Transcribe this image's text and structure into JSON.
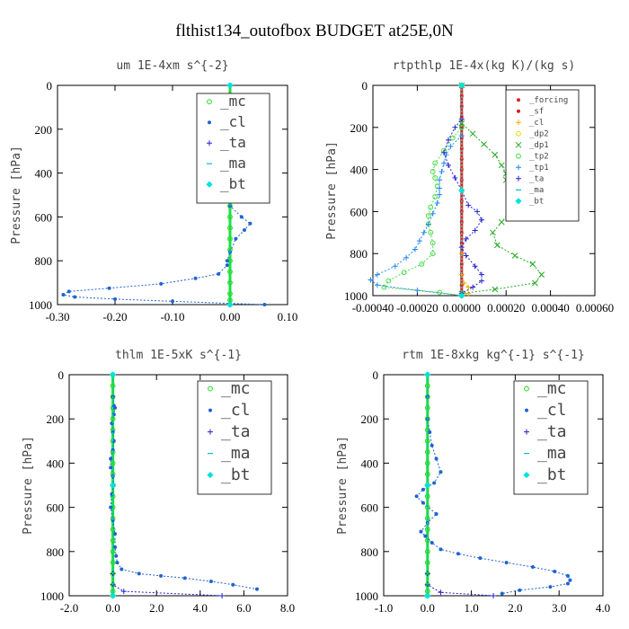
{
  "title": "flthist134_outofbox  BUDGET at25E,0N",
  "chart_data": [
    {
      "type": "line",
      "title": "um  1E-4xm s^{-2}",
      "ylabel": "Pressure [hPa]",
      "xlim": [
        -0.3,
        0.1
      ],
      "ylim": [
        1000,
        0
      ],
      "xticks": [
        "-0.30",
        "-0.20",
        "-0.10",
        "0.00",
        "0.10"
      ],
      "yticks": [
        "0",
        "200",
        "400",
        "600",
        "800",
        "1000"
      ],
      "legend_position": "upper-right",
      "series": [
        {
          "name": "_mc",
          "color": "#22dd22",
          "marker": "o",
          "x": [
            0.0,
            0.0,
            0.0,
            0.0,
            0.0,
            0.0,
            0.0,
            0.0,
            0.0,
            0.0,
            0.0,
            0.0,
            0.0,
            0.0,
            0.0,
            0.0,
            0.0,
            0.0,
            0.0,
            0.0,
            0.0,
            0.0
          ],
          "y": [
            0,
            50,
            100,
            150,
            200,
            250,
            300,
            350,
            400,
            450,
            500,
            550,
            600,
            650,
            700,
            750,
            800,
            850,
            900,
            950,
            980,
            1000
          ]
        },
        {
          "name": "_cl",
          "color": "#1e64d2",
          "marker": "*",
          "x": [
            0.0,
            0.0,
            0.01,
            0.04,
            0.045,
            0.03,
            0.02,
            0.0,
            -0.02,
            -0.04,
            -0.045,
            -0.03,
            -0.01,
            0.0,
            0.0,
            0.005,
            0.01,
            0.0,
            0.0,
            0.02,
            0.035,
            0.025,
            0.01,
            0.0,
            -0.005,
            -0.005,
            -0.02,
            -0.06,
            -0.12,
            -0.21,
            -0.28,
            -0.29,
            -0.27,
            -0.2,
            -0.1,
            0.06
          ],
          "y": [
            0,
            60,
            100,
            135,
            150,
            175,
            200,
            210,
            215,
            220,
            240,
            265,
            280,
            300,
            350,
            400,
            450,
            500,
            550,
            600,
            630,
            660,
            700,
            760,
            800,
            820,
            860,
            880,
            905,
            925,
            940,
            955,
            965,
            975,
            985,
            1000
          ]
        },
        {
          "name": "_ta",
          "color": "#2222cc",
          "marker": "+",
          "x": [
            0.0,
            0.0,
            0.0
          ],
          "y": [
            0,
            500,
            1000
          ]
        },
        {
          "name": "_ma",
          "color": "#00bcd4",
          "marker": "-",
          "x": [
            0.0,
            0.0,
            0.0
          ],
          "y": [
            0,
            500,
            1000
          ]
        },
        {
          "name": "_bt",
          "color": "#00e0e0",
          "marker": "d",
          "x": [
            0.0,
            0.0,
            0.0
          ],
          "y": [
            0,
            500,
            1000
          ]
        }
      ]
    },
    {
      "type": "line",
      "title": "rtpthlp  1E-4x(kg K)/(kg s)",
      "ylabel": "Pressure [hPa]",
      "xlim": [
        -0.0004,
        0.0006
      ],
      "ylim": [
        1000,
        0
      ],
      "xticks": [
        "-0.00040",
        "-0.00020",
        "0.00000",
        "0.00020",
        "0.00040",
        "0.00060"
      ],
      "yticks": [
        "0",
        "200",
        "400",
        "600",
        "800",
        "1000"
      ],
      "legend_position": "upper-right",
      "series": [
        {
          "name": "_forcing",
          "color": "#dd2222",
          "marker": "*",
          "x": [
            0.0,
            0.0,
            0.0,
            0.0,
            0.0,
            0.0,
            0.0,
            0.0,
            0.0,
            0.0,
            0.0,
            0.0,
            0.0,
            0.0,
            0.0,
            0.0,
            0.0,
            0.0,
            0.0,
            0.0,
            0.0
          ],
          "y": [
            0,
            50,
            100,
            150,
            200,
            250,
            300,
            350,
            400,
            450,
            500,
            550,
            600,
            650,
            700,
            750,
            800,
            850,
            900,
            950,
            1000
          ]
        },
        {
          "name": "_sf",
          "color": "#cc2222",
          "marker": "*",
          "x": [
            0.0,
            0.0,
            0.0
          ],
          "y": [
            0,
            500,
            1000
          ]
        },
        {
          "name": "_cl",
          "color": "#ffaa00",
          "marker": "+",
          "x": [
            0.0,
            0.0,
            0.0,
            1e-05,
            3e-05,
            3e-05,
            0.0
          ],
          "y": [
            0,
            800,
            900,
            940,
            960,
            990,
            1000
          ]
        },
        {
          "name": "_dp2",
          "color": "#dddd00",
          "marker": "o",
          "x": [
            0.0,
            0.0,
            0.0
          ],
          "y": [
            0,
            500,
            1000
          ]
        },
        {
          "name": "_dp1",
          "color": "#22aa22",
          "marker": "x",
          "x": [
            0.0,
            0.0,
            5e-05,
            0.0001,
            0.00015,
            0.00018,
            0.0002,
            0.0002,
            0.00021,
            0.00022,
            0.00023,
            0.00022,
            0.00018,
            0.00014,
            0.00016,
            0.00024,
            0.00032,
            0.00036,
            0.00033,
            0.00015,
            0.0
          ],
          "y": [
            0,
            180,
            230,
            280,
            330,
            380,
            420,
            450,
            490,
            520,
            560,
            600,
            650,
            700,
            760,
            810,
            850,
            900,
            940,
            970,
            990
          ]
        },
        {
          "name": "_tp2",
          "color": "#44dd44",
          "marker": "o",
          "x": [
            0.0,
            0.0,
            -4e-05,
            -8e-05,
            -0.00012,
            -0.00013,
            -0.00012,
            -0.00011,
            -0.00012,
            -0.00014,
            -0.00015,
            -0.00015,
            -0.00014,
            -0.00013,
            -0.00013,
            -0.00018,
            -0.00026,
            -0.00033,
            -0.00035,
            -0.0001,
            0.0
          ],
          "y": [
            0,
            200,
            250,
            310,
            370,
            410,
            440,
            480,
            530,
            580,
            620,
            660,
            700,
            750,
            800,
            850,
            890,
            930,
            960,
            985,
            1000
          ]
        },
        {
          "name": "_tp1",
          "color": "#2288ee",
          "marker": "+",
          "x": [
            0.0,
            0.0,
            -5e-05,
            -7e-05,
            -8e-05,
            -9e-05,
            -0.0001,
            -0.0001,
            -0.0001,
            -0.00011,
            -0.00013,
            -0.00015,
            -0.00017,
            -0.00019,
            -0.00021,
            -0.00025,
            -0.0003,
            -0.00038,
            -0.00041,
            -0.00038,
            -0.0002,
            0.0
          ],
          "y": [
            0,
            240,
            290,
            330,
            370,
            410,
            450,
            490,
            520,
            560,
            610,
            660,
            700,
            740,
            780,
            820,
            860,
            900,
            925,
            950,
            975,
            1000
          ]
        },
        {
          "name": "_ta",
          "color": "#2222cc",
          "marker": "+",
          "x": [
            0.0,
            0.0,
            -3e-05,
            -6e-05,
            -8e-05,
            -6e-05,
            -3e-05,
            0.0,
            3e-05,
            7e-05,
            9e-05,
            6e-05,
            2e-05,
            0.0,
            2e-05,
            6e-05,
            9e-05,
            9e-05,
            5e-05,
            0.0
          ],
          "y": [
            0,
            160,
            200,
            260,
            320,
            380,
            440,
            500,
            570,
            600,
            640,
            690,
            730,
            770,
            810,
            860,
            900,
            930,
            960,
            990
          ]
        },
        {
          "name": "_ma",
          "color": "#00bcd4",
          "marker": "-",
          "x": [
            0.0,
            0.0,
            0.0
          ],
          "y": [
            0,
            500,
            1000
          ]
        },
        {
          "name": "_bt",
          "color": "#00e0e0",
          "marker": "d",
          "x": [
            0.0,
            0.0,
            0.0
          ],
          "y": [
            0,
            500,
            1000
          ]
        }
      ]
    },
    {
      "type": "line",
      "title": "thlm  1E-5xK s^{-1}",
      "ylabel": "Pressure [hPa]",
      "xlim": [
        -2.0,
        8.0
      ],
      "ylim": [
        1000,
        0
      ],
      "xticks": [
        "-2.0",
        "0.0",
        "2.0",
        "4.0",
        "6.0",
        "8.0"
      ],
      "yticks": [
        "0",
        "200",
        "400",
        "600",
        "800",
        "1000"
      ],
      "legend_position": "upper-right",
      "series": [
        {
          "name": "_mc",
          "color": "#22dd22",
          "marker": "o",
          "x": [
            0.0,
            0.0,
            0.0,
            0.0,
            0.0,
            0.0,
            0.0,
            0.0,
            0.0,
            0.0,
            0.0,
            0.0,
            0.0,
            0.0,
            0.0,
            0.0,
            0.0,
            0.0,
            0.0,
            0.0,
            0.0,
            0.0
          ],
          "y": [
            0,
            50,
            100,
            150,
            200,
            250,
            300,
            350,
            400,
            450,
            500,
            550,
            600,
            650,
            700,
            750,
            800,
            850,
            900,
            950,
            980,
            1000
          ]
        },
        {
          "name": "_cl",
          "color": "#1e64d2",
          "marker": "*",
          "x": [
            0.0,
            0.0,
            0.05,
            0.1,
            0.05,
            -0.05,
            0.0,
            0.05,
            0.0,
            -0.1,
            -0.1,
            0.0,
            0.05,
            -0.05,
            -0.1,
            0.0,
            0.1,
            0.1,
            0.15,
            0.2,
            0.4,
            1.2,
            2.2,
            3.3,
            4.5,
            5.5,
            6.6
          ],
          "y": [
            0,
            100,
            140,
            150,
            180,
            220,
            260,
            300,
            340,
            380,
            420,
            460,
            500,
            540,
            600,
            660,
            720,
            780,
            820,
            850,
            880,
            900,
            910,
            920,
            935,
            950,
            970
          ]
        },
        {
          "name": "_ta",
          "color": "#2222cc",
          "marker": "+",
          "x": [
            0.0,
            0.0,
            0.0,
            0.5,
            5.0
          ],
          "y": [
            0,
            900,
            950,
            980,
            1000
          ]
        },
        {
          "name": "_ma",
          "color": "#00bcd4",
          "marker": "-",
          "x": [
            0.0,
            0.0,
            0.0
          ],
          "y": [
            0,
            500,
            1000
          ]
        },
        {
          "name": "_bt",
          "color": "#00e0e0",
          "marker": "d",
          "x": [
            0.0,
            0.0,
            0.0
          ],
          "y": [
            0,
            500,
            1000
          ]
        }
      ]
    },
    {
      "type": "line",
      "title": "rtm  1E-8xkg kg^{-1} s^{-1}",
      "ylabel": "Pressure [hPa]",
      "xlim": [
        -1.0,
        4.0
      ],
      "ylim": [
        1000,
        0
      ],
      "xticks": [
        "-1.0",
        "0.0",
        "1.0",
        "2.0",
        "3.0",
        "4.0"
      ],
      "yticks": [
        "0",
        "200",
        "400",
        "600",
        "800",
        "1000"
      ],
      "legend_position": "upper-right",
      "series": [
        {
          "name": "_mc",
          "color": "#22dd22",
          "marker": "o",
          "x": [
            0.0,
            0.0,
            0.0,
            0.0,
            0.0,
            0.0,
            0.0,
            0.0,
            0.0,
            0.0,
            0.0,
            0.0,
            0.0,
            0.0,
            0.0,
            0.0,
            0.0,
            0.0,
            0.0,
            0.0,
            0.0,
            0.0
          ],
          "y": [
            0,
            50,
            100,
            150,
            200,
            250,
            300,
            350,
            400,
            450,
            500,
            550,
            600,
            650,
            700,
            750,
            800,
            850,
            900,
            950,
            980,
            1000
          ]
        },
        {
          "name": "_cl",
          "color": "#1e64d2",
          "marker": "*",
          "x": [
            0.0,
            0.0,
            0.0,
            0.05,
            0.1,
            0.2,
            0.3,
            0.15,
            -0.1,
            -0.25,
            -0.1,
            0.2,
            0.0,
            -0.15,
            -0.05,
            0.1,
            0.3,
            0.7,
            1.2,
            1.8,
            2.4,
            2.9,
            3.2,
            3.25,
            3.2,
            2.8,
            2.1,
            1.7
          ],
          "y": [
            0,
            100,
            200,
            260,
            320,
            380,
            440,
            490,
            520,
            550,
            580,
            630,
            670,
            710,
            730,
            760,
            790,
            810,
            830,
            850,
            870,
            890,
            910,
            930,
            945,
            960,
            975,
            990
          ]
        },
        {
          "name": "_ta",
          "color": "#2222cc",
          "marker": "+",
          "x": [
            0.0,
            0.0,
            0.0,
            0.3,
            1.5
          ],
          "y": [
            0,
            900,
            950,
            985,
            1000
          ]
        },
        {
          "name": "_ma",
          "color": "#00bcd4",
          "marker": "-",
          "x": [
            0.0,
            0.0,
            0.0
          ],
          "y": [
            0,
            500,
            1000
          ]
        },
        {
          "name": "_bt",
          "color": "#00e0e0",
          "marker": "d",
          "x": [
            0.0,
            0.0,
            0.0
          ],
          "y": [
            0,
            500,
            1000
          ]
        }
      ]
    }
  ]
}
